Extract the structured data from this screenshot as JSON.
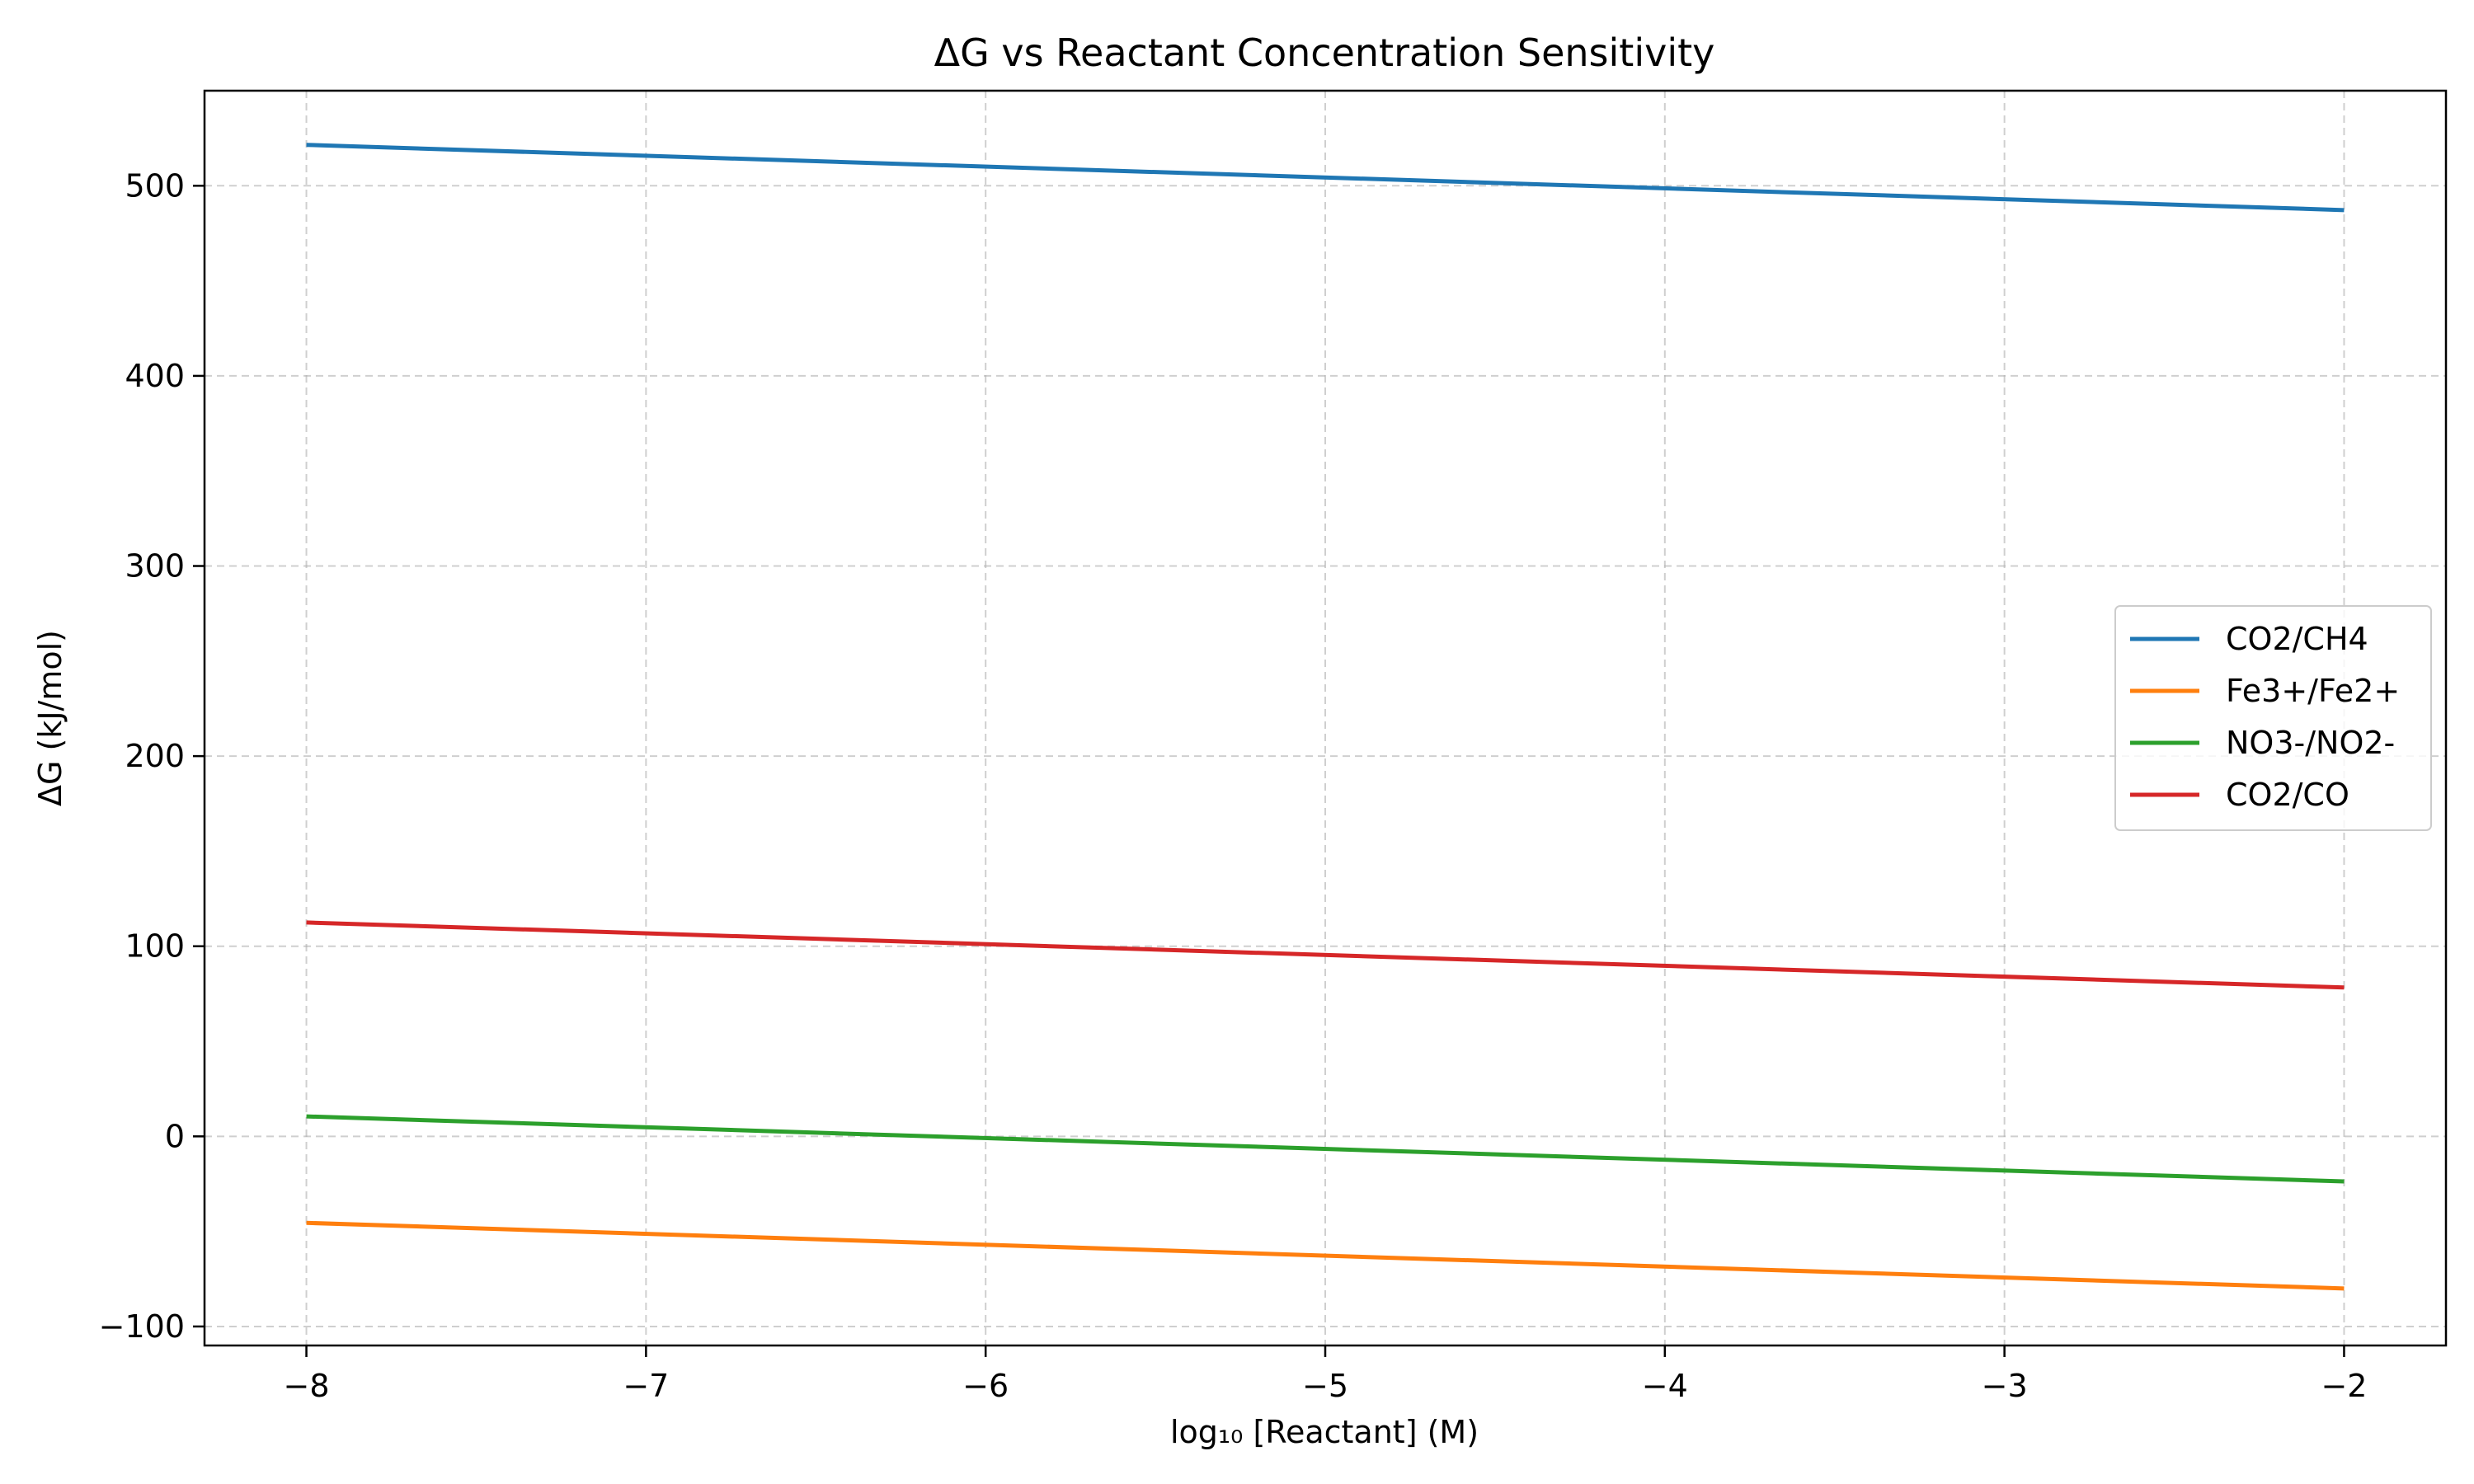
{
  "chart_data": {
    "type": "line",
    "title": "ΔG vs Reactant Concentration Sensitivity",
    "xlabel": "log₁₀ [Reactant] (M)",
    "ylabel": "ΔG (kJ/mol)",
    "xlim": [
      -8.3,
      -1.7
    ],
    "ylim": [
      -110,
      550
    ],
    "x_ticks": [
      -8,
      -7,
      -6,
      -5,
      -4,
      -3,
      -2
    ],
    "x_tick_labels": [
      "−8",
      "−7",
      "−6",
      "−5",
      "−4",
      "−3",
      "−2"
    ],
    "y_ticks": [
      -100,
      0,
      100,
      200,
      300,
      400,
      500
    ],
    "y_tick_labels": [
      "−100",
      "0",
      "100",
      "200",
      "300",
      "400",
      "500"
    ],
    "grid": true,
    "legend_position": "center-right",
    "series": [
      {
        "name": "CO2/CH4",
        "color": "#1f77b4",
        "x": [
          -8,
          -2
        ],
        "y": [
          521.5,
          487.2
        ]
      },
      {
        "name": "Fe3+/Fe2+",
        "color": "#ff7f0e",
        "x": [
          -8,
          -2
        ],
        "y": [
          -45.5,
          -80
        ]
      },
      {
        "name": "NO3-/NO2-",
        "color": "#2ca02c",
        "x": [
          -8,
          -2
        ],
        "y": [
          10.5,
          -23.7
        ]
      },
      {
        "name": "CO2/CO",
        "color": "#d62728",
        "x": [
          -8,
          -2
        ],
        "y": [
          112.5,
          78.3
        ]
      }
    ]
  }
}
